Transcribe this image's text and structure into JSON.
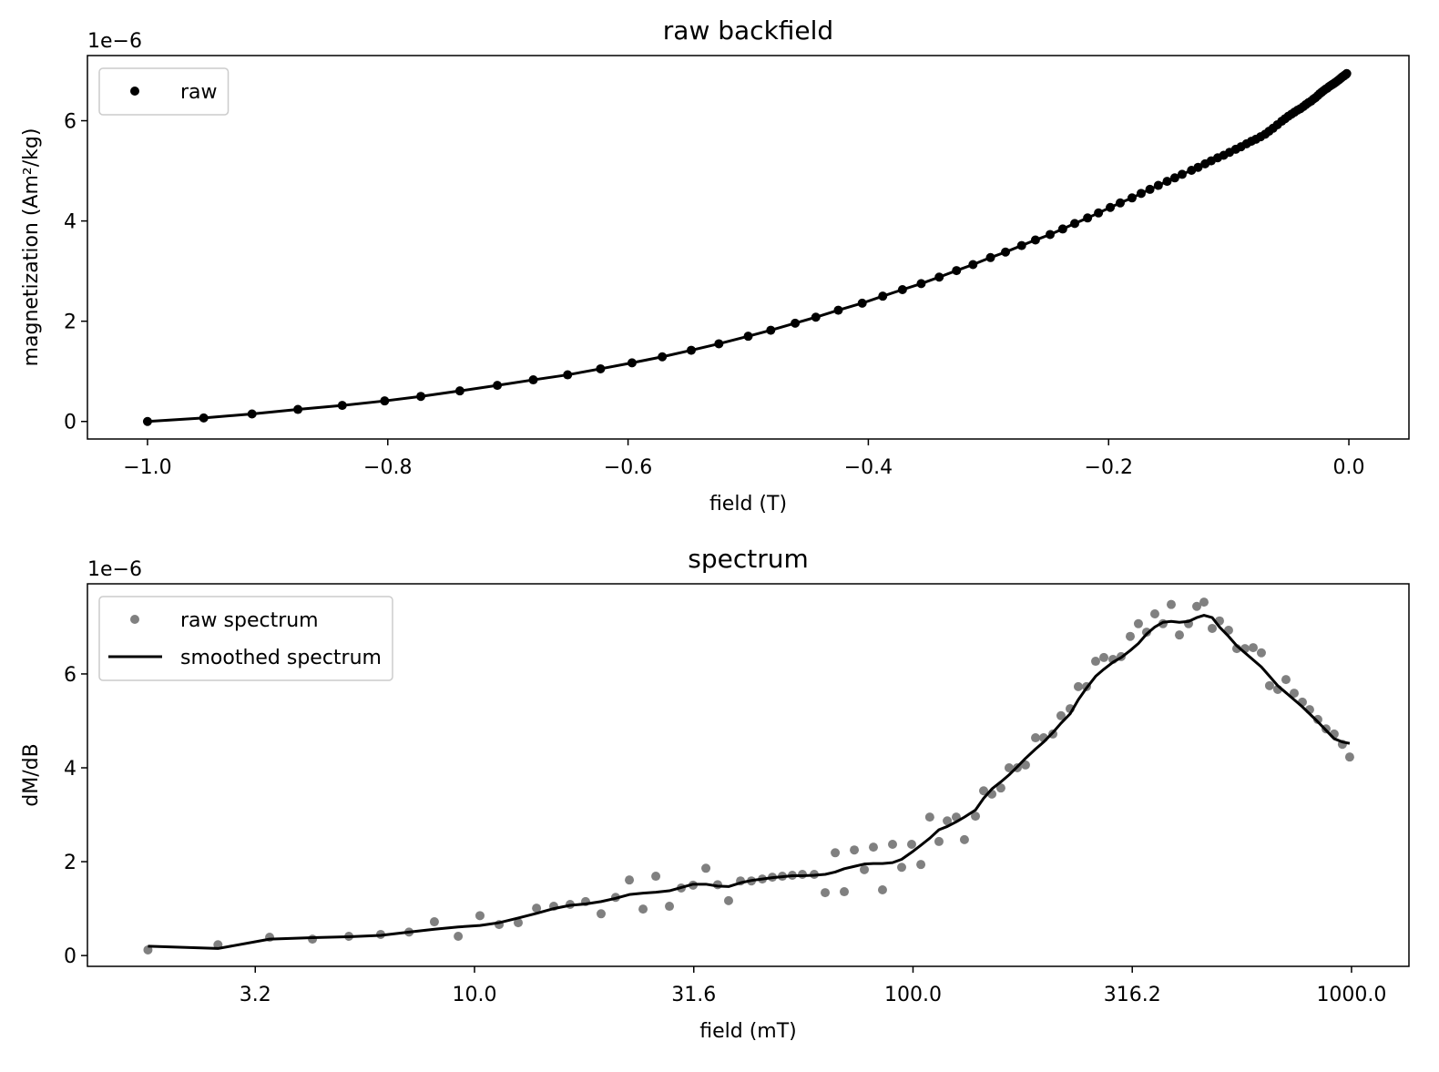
{
  "chart_data": [
    {
      "type": "scatter",
      "title": "raw backfield",
      "xlabel": "field (T)",
      "ylabel": "magnetization (Am²/kg)",
      "offset_text": "1e−6",
      "xlim": [
        -1.05,
        0.05
      ],
      "ylim": [
        -0.35,
        7.3
      ],
      "xticks": [
        {
          "value": -1.0,
          "label": "−1.0"
        },
        {
          "value": -0.8,
          "label": "−0.8"
        },
        {
          "value": -0.6,
          "label": "−0.6"
        },
        {
          "value": -0.4,
          "label": "−0.4"
        },
        {
          "value": -0.2,
          "label": "−0.2"
        },
        {
          "value": 0,
          "label": "0.0"
        }
      ],
      "yticks": [
        0,
        2,
        4,
        6
      ],
      "legend": "upper left",
      "series": [
        {
          "name": "raw",
          "color": "#000000",
          "mode": "markers+line",
          "x": [
            -0.0018,
            -0.0026,
            -0.0034,
            -0.0043,
            -0.0052,
            -0.0061,
            -0.0071,
            -0.0081,
            -0.0092,
            -0.0103,
            -0.0114,
            -0.0126,
            -0.0139,
            -0.0152,
            -0.0165,
            -0.0179,
            -0.0194,
            -0.021,
            -0.0226,
            -0.0242,
            -0.0259,
            -0.0278,
            -0.0296,
            -0.0315,
            -0.0337,
            -0.0359,
            -0.038,
            -0.0404,
            -0.0428,
            -0.0453,
            -0.0478,
            -0.0504,
            -0.0531,
            -0.0559,
            -0.0595,
            -0.0631,
            -0.0665,
            -0.0697,
            -0.0735,
            -0.0774,
            -0.0812,
            -0.0852,
            -0.0898,
            -0.0942,
            -0.0993,
            -0.1042,
            -0.1092,
            -0.1146,
            -0.1197,
            -0.1255,
            -0.131,
            -0.1388,
            -0.1449,
            -0.1513,
            -0.1586,
            -0.1656,
            -0.1729,
            -0.1805,
            -0.1903,
            -0.1986,
            -0.2084,
            -0.2175,
            -0.2282,
            -0.2382,
            -0.2487,
            -0.2609,
            -0.2724,
            -0.2858,
            -0.2983,
            -0.3129,
            -0.3266,
            -0.341,
            -0.356,
            -0.3716,
            -0.388,
            -0.4051,
            -0.425,
            -0.4437,
            -0.4609,
            -0.4812,
            -0.5,
            -0.5244,
            -0.5474,
            -0.5715,
            -0.5967,
            -0.6229,
            -0.6503,
            -0.6789,
            -0.7088,
            -0.74,
            -0.7725,
            -0.8026,
            -0.8379,
            -0.8748,
            -0.913,
            -0.9532,
            -1.0
          ],
          "values": [
            6.94,
            6.92,
            6.91,
            6.89,
            6.88,
            6.86,
            6.84,
            6.82,
            6.8,
            6.78,
            6.76,
            6.74,
            6.72,
            6.7,
            6.68,
            6.65,
            6.63,
            6.6,
            6.57,
            6.54,
            6.5,
            6.46,
            6.43,
            6.39,
            6.36,
            6.32,
            6.28,
            6.24,
            6.21,
            6.17,
            6.13,
            6.09,
            6.04,
            5.99,
            5.92,
            5.85,
            5.79,
            5.73,
            5.68,
            5.63,
            5.59,
            5.54,
            5.48,
            5.43,
            5.37,
            5.31,
            5.26,
            5.2,
            5.14,
            5.07,
            5.01,
            4.93,
            4.86,
            4.79,
            4.71,
            4.63,
            4.55,
            4.46,
            4.36,
            4.27,
            4.16,
            4.06,
            3.95,
            3.84,
            3.73,
            3.62,
            3.51,
            3.38,
            3.27,
            3.13,
            3.01,
            2.88,
            2.75,
            2.63,
            2.5,
            2.36,
            2.22,
            2.08,
            1.96,
            1.82,
            1.7,
            1.55,
            1.42,
            1.29,
            1.17,
            1.05,
            0.93,
            0.83,
            0.72,
            0.61,
            0.5,
            0.41,
            0.32,
            0.24,
            0.15,
            0.07,
            0
          ]
        }
      ]
    },
    {
      "type": "scatter",
      "title": "spectrum",
      "xlabel": "field (mT)",
      "ylabel": "dM/dB",
      "offset_text": "1e−6",
      "xscale": "log",
      "xlim": [
        1.31,
        1352
      ],
      "ylim": [
        -0.23,
        7.92
      ],
      "xticks": [
        {
          "value": 3.1623,
          "label": "3.2"
        },
        {
          "value": 10,
          "label": "10.0"
        },
        {
          "value": 31.623,
          "label": "31.6"
        },
        {
          "value": 100,
          "label": "100.0"
        },
        {
          "value": 316.23,
          "label": "316.2"
        },
        {
          "value": 1000,
          "label": "1000.0"
        }
      ],
      "yticks": [
        0,
        2,
        4,
        6
      ],
      "legend": "upper left",
      "series": [
        {
          "name": "raw spectrum",
          "color": "#808080",
          "mode": "markers",
          "x": [
            1.8,
            2.6,
            3.41,
            4.27,
            5.17,
            6.11,
            7.09,
            8.1,
            9.18,
            10.29,
            11.38,
            12.58,
            13.85,
            15.16,
            16.52,
            17.92,
            19.44,
            20.98,
            22.55,
            24.23,
            25.91,
            27.83,
            29.61,
            31.51,
            33.7,
            35.85,
            37.97,
            40.42,
            42.8,
            45.33,
            47.78,
            50.35,
            53.06,
            55.94,
            59.53,
            63.05,
            66.47,
            69.7,
            73.48,
            77.44,
            81.22,
            85.2,
            89.81,
            94.21,
            99.29,
            104.2,
            109.2,
            114.6,
            119.7,
            125.5,
            131.0,
            138.8,
            144.9,
            151.3,
            158.6,
            165.6,
            172.9,
            180.5,
            190.3,
            198.6,
            208.4,
            217.5,
            228.2,
            238.2,
            248.7,
            260.9,
            272.4,
            285.8,
            298.3,
            312.9,
            326.6,
            341.0,
            356.0,
            371.6,
            388.0,
            405.1,
            425.0,
            443.7,
            460.9,
            481.2,
            500.0,
            524.4,
            547.4,
            571.5,
            596.7,
            622.9,
            650.3,
            678.9,
            708.8,
            740.0,
            772.5,
            802.6,
            837.9,
            874.8,
            913.0,
            953.2,
            990.4
          ],
          "values": [
            0.12,
            0.23,
            0.39,
            0.35,
            0.41,
            0.45,
            0.5,
            0.72,
            0.41,
            0.85,
            0.66,
            0.7,
            1.01,
            1.05,
            1.09,
            1.15,
            0.89,
            1.24,
            1.61,
            0.99,
            1.69,
            1.05,
            1.44,
            1.5,
            1.86,
            1.51,
            1.17,
            1.59,
            1.59,
            1.63,
            1.67,
            1.69,
            1.71,
            1.73,
            1.73,
            1.34,
            2.19,
            1.36,
            2.25,
            1.83,
            2.31,
            1.4,
            2.37,
            1.88,
            2.37,
            1.94,
            2.95,
            2.43,
            2.87,
            2.95,
            2.47,
            2.97,
            3.51,
            3.44,
            3.57,
            4.0,
            4.0,
            4.06,
            4.64,
            4.64,
            4.72,
            5.11,
            5.26,
            5.73,
            5.73,
            6.27,
            6.35,
            6.31,
            6.37,
            6.8,
            7.07,
            6.89,
            7.28,
            7.07,
            7.48,
            6.83,
            7.07,
            7.44,
            7.53,
            6.97,
            7.13,
            6.93,
            6.54,
            6.54,
            6.56,
            6.45,
            5.75,
            5.67,
            5.88,
            5.59,
            5.4,
            5.24,
            5.03,
            4.83,
            4.72,
            4.5,
            4.23
          ]
        },
        {
          "name": "smoothed spectrum",
          "color": "#000000",
          "mode": "line",
          "x": [
            1.8,
            2.6,
            3.41,
            4.27,
            5.17,
            6.11,
            7.09,
            8.1,
            9.18,
            10.29,
            11.38,
            12.58,
            13.85,
            15.16,
            16.52,
            17.92,
            19.44,
            20.98,
            22.55,
            24.23,
            25.91,
            27.83,
            29.61,
            31.51,
            33.7,
            35.85,
            37.97,
            40.42,
            42.8,
            45.33,
            47.78,
            50.35,
            53.06,
            55.94,
            59.53,
            63.05,
            66.47,
            69.7,
            73.48,
            77.44,
            81.22,
            85.2,
            89.81,
            94.21,
            99.29,
            104.2,
            109.2,
            114.6,
            119.7,
            125.5,
            131.0,
            138.8,
            144.9,
            151.3,
            158.6,
            165.6,
            172.9,
            180.5,
            190.3,
            198.6,
            208.4,
            217.5,
            228.2,
            238.2,
            248.7,
            260.9,
            272.4,
            285.8,
            298.3,
            312.9,
            326.6,
            341.0,
            356.0,
            371.6,
            388.0,
            405.1,
            425.0,
            443.7,
            460.9,
            481.2,
            500.0,
            524.4,
            547.4,
            571.5,
            596.7,
            622.9,
            650.3,
            678.9,
            708.8,
            740.0,
            772.5,
            802.6,
            837.9,
            874.8,
            913.0,
            953.2,
            990.4
          ],
          "values": [
            0.2,
            0.15,
            0.35,
            0.38,
            0.4,
            0.43,
            0.5,
            0.56,
            0.61,
            0.64,
            0.7,
            0.8,
            0.9,
            1.0,
            1.07,
            1.1,
            1.15,
            1.22,
            1.3,
            1.33,
            1.35,
            1.38,
            1.45,
            1.52,
            1.52,
            1.48,
            1.47,
            1.55,
            1.6,
            1.63,
            1.66,
            1.68,
            1.7,
            1.7,
            1.71,
            1.73,
            1.78,
            1.85,
            1.9,
            1.95,
            1.96,
            1.96,
            1.98,
            2.05,
            2.2,
            2.35,
            2.5,
            2.68,
            2.75,
            2.85,
            2.95,
            3.1,
            3.35,
            3.55,
            3.7,
            3.85,
            4.02,
            4.2,
            4.4,
            4.55,
            4.75,
            4.95,
            5.15,
            5.45,
            5.7,
            5.95,
            6.1,
            6.25,
            6.35,
            6.5,
            6.65,
            6.85,
            7.0,
            7.1,
            7.12,
            7.1,
            7.12,
            7.2,
            7.25,
            7.2,
            7.0,
            6.8,
            6.6,
            6.45,
            6.3,
            6.15,
            5.95,
            5.75,
            5.6,
            5.45,
            5.3,
            5.15,
            4.98,
            4.8,
            4.62,
            4.55,
            4.52
          ]
        }
      ]
    }
  ]
}
